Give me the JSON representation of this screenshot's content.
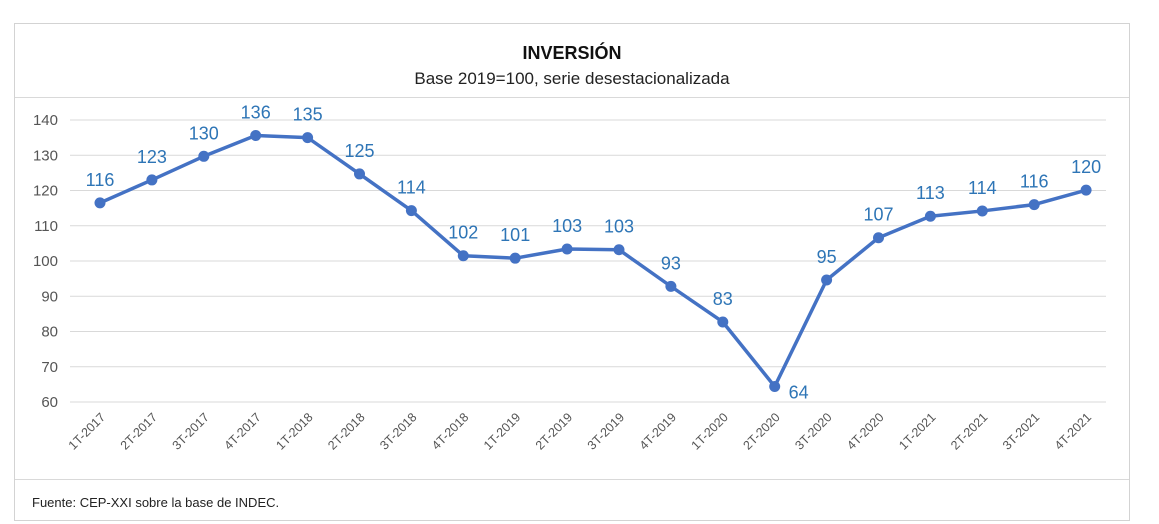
{
  "title": "INVERSIÓN",
  "subtitle": "Base 2019=100, serie desestacionalizada",
  "source": "Fuente: CEP-XXI sobre la base de INDEC.",
  "colors": {
    "line": "#4472c4",
    "label": "#2e75b6",
    "grid": "#d9d9d9",
    "tick": "#555555"
  },
  "chart_data": {
    "type": "line",
    "categories": [
      "1T-2017",
      "2T-2017",
      "3T-2017",
      "4T-2017",
      "1T-2018",
      "2T-2018",
      "3T-2018",
      "4T-2018",
      "1T-2019",
      "2T-2019",
      "3T-2019",
      "4T-2019",
      "1T-2020",
      "2T-2020",
      "3T-2020",
      "4T-2020",
      "1T-2021",
      "2T-2021",
      "3T-2021",
      "4T-2021"
    ],
    "values": [
      116.5,
      123,
      129.7,
      135.6,
      135,
      124.7,
      114.3,
      101.5,
      100.8,
      103.4,
      103.2,
      92.8,
      82.7,
      64.4,
      94.6,
      106.6,
      112.7,
      114.2,
      116,
      120.1
    ],
    "data_labels": [
      "116",
      "123",
      "130",
      "136",
      "135",
      "125",
      "114",
      "102",
      "101",
      "103",
      "103",
      "93",
      "83",
      "64",
      "95",
      "107",
      "113",
      "114",
      "116",
      "120"
    ],
    "yticks": [
      60,
      70,
      80,
      90,
      100,
      110,
      120,
      130,
      140
    ],
    "ylim": [
      60,
      140
    ],
    "grid": true,
    "legend": "none"
  }
}
